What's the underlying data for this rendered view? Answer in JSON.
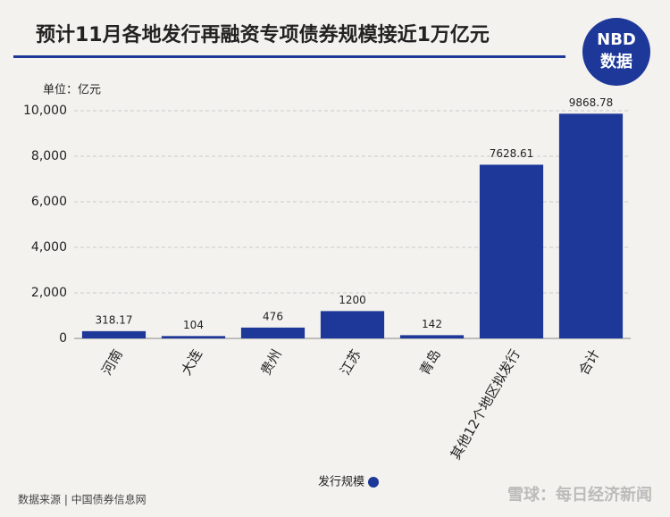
{
  "chart_data": {
    "type": "bar",
    "title": "预计11月各地发行再融资专项债券规模接近1万亿元",
    "unit": "单位：亿元",
    "categories": [
      "河南",
      "大连",
      "贵州",
      "江苏",
      "青岛",
      "其他12个地区拟发行",
      "合计"
    ],
    "series": [
      {
        "name": "发行规模",
        "color": "#1d3899",
        "values": [
          318.17,
          104,
          476,
          1200,
          142,
          7628.61,
          9868.78
        ]
      }
    ],
    "ylim": [
      0,
      10000
    ],
    "yticks": [
      0,
      {
        "value": 2000,
        "label": "2,000"
      },
      {
        "value": 4000,
        "label": "4,000"
      },
      {
        "value": 6000,
        "label": "6,000"
      },
      {
        "value": 8000,
        "label": "8,000"
      },
      {
        "value": 10000,
        "label": "10,000"
      }
    ],
    "grid": true,
    "legend": "bottom",
    "source": "数据来源 | 中国债券信息网"
  },
  "logo": {
    "top": "NBD",
    "bottom": "数据"
  },
  "watermark": "雪球：每日经济新闻"
}
